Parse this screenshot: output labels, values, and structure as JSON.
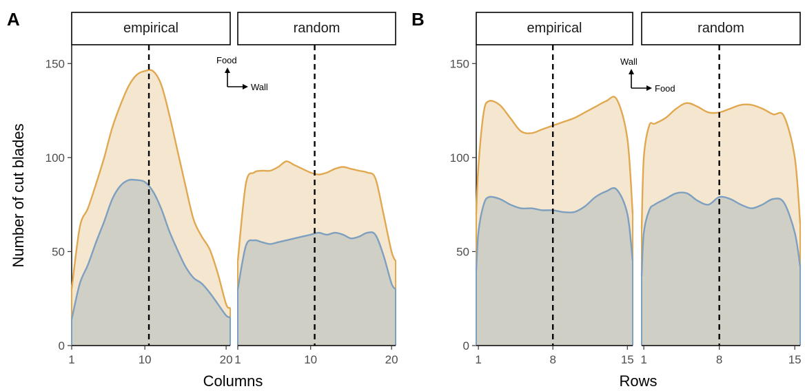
{
  "colors": {
    "fill_total": "#f5e6cf",
    "line_total": "#e0a850",
    "fill_sub": "#cfcfc6",
    "line_sub": "#7d9fc0",
    "ref_line": "#000000"
  },
  "chart_data": [
    {
      "panel_label": "A",
      "type": "area",
      "ylabel": "Number of cut blades",
      "xlabel": "Columns",
      "ylim": [
        0,
        160
      ],
      "y_ticks": [
        0,
        50,
        100,
        150
      ],
      "grid": false,
      "facets": [
        {
          "label": "empirical",
          "xlim": [
            1,
            20.5
          ],
          "x_ticks": [
            1,
            10,
            20
          ],
          "ref_line_x": 10.5,
          "series": [
            {
              "name": "",
              "role": "total",
              "x": [
                1,
                2,
                3,
                4,
                5,
                6,
                7,
                8,
                9,
                10,
                11,
                12,
                13,
                14,
                15,
                16,
                17,
                18,
                19,
                20,
                20.5
              ],
              "y": [
                30,
                63,
                73,
                86,
                100,
                116,
                128,
                138,
                144,
                146,
                146,
                139,
                123,
                104,
                85,
                67,
                58,
                51,
                38,
                22,
                20
              ]
            },
            {
              "name": "",
              "role": "subset",
              "x": [
                1,
                2,
                3,
                4,
                5,
                6,
                7,
                8,
                9,
                10,
                11,
                12,
                13,
                14,
                15,
                16,
                17,
                18,
                19,
                20,
                20.5
              ],
              "y": [
                14,
                33,
                43,
                55,
                66,
                78,
                85,
                88,
                88,
                87,
                82,
                73,
                61,
                51,
                42,
                36,
                33,
                28,
                22,
                16,
                15
              ]
            }
          ]
        },
        {
          "label": "random",
          "xlim": [
            1,
            20.5
          ],
          "x_ticks": [
            1,
            10,
            20
          ],
          "ref_line_x": 10.5,
          "series": [
            {
              "name": "",
              "role": "total",
              "x": [
                1,
                2,
                3,
                4,
                5,
                6,
                7,
                8,
                9,
                10,
                11,
                12,
                13,
                14,
                15,
                16,
                17,
                18,
                19,
                20,
                20.5
              ],
              "y": [
                45,
                86,
                92,
                93,
                93,
                95,
                98,
                96,
                94,
                92,
                91,
                92,
                94,
                95,
                94,
                93,
                92,
                89,
                70,
                50,
                45
              ]
            },
            {
              "name": "",
              "role": "subset",
              "x": [
                1,
                2,
                3,
                4,
                5,
                6,
                7,
                8,
                9,
                10,
                11,
                12,
                13,
                14,
                15,
                16,
                17,
                18,
                19,
                20,
                20.5
              ],
              "y": [
                30,
                53,
                56,
                55,
                54,
                55,
                56,
                57,
                58,
                59,
                60,
                59,
                60,
                59,
                57,
                58,
                60,
                59,
                48,
                33,
                30
              ]
            }
          ]
        }
      ],
      "compass": {
        "up_label": "Food",
        "right_label": "Wall"
      }
    },
    {
      "panel_label": "B",
      "type": "area",
      "ylabel": "",
      "xlabel": "Rows",
      "ylim": [
        0,
        160
      ],
      "y_ticks": [
        0,
        50,
        100,
        150
      ],
      "grid": false,
      "facets": [
        {
          "label": "empirical",
          "xlim": [
            0.8,
            15.5
          ],
          "x_ticks": [
            1,
            8,
            15
          ],
          "ref_line_x": 8,
          "series": [
            {
              "name": "",
              "role": "total",
              "x": [
                0.8,
                1,
                1.5,
                2,
                3,
                4,
                5,
                6,
                7,
                8,
                9,
                10,
                11,
                12,
                13,
                14,
                15,
                15.5
              ],
              "y": [
                70,
                95,
                124,
                130,
                128,
                121,
                114,
                113,
                115,
                117,
                119,
                121,
                124,
                127,
                130,
                131,
                110,
                70
              ]
            },
            {
              "name": "",
              "role": "subset",
              "x": [
                0.8,
                1,
                1.5,
                2,
                3,
                4,
                5,
                6,
                7,
                8,
                9,
                10,
                11,
                12,
                13,
                14,
                15,
                15.5
              ],
              "y": [
                40,
                60,
                75,
                79,
                78,
                75,
                73,
                73,
                72,
                72,
                71,
                71,
                74,
                79,
                82,
                83,
                70,
                45
              ]
            }
          ]
        },
        {
          "label": "random",
          "xlim": [
            0.8,
            15.5
          ],
          "x_ticks": [
            1,
            8,
            15
          ],
          "ref_line_x": 8,
          "series": [
            {
              "name": "",
              "role": "total",
              "x": [
                0.8,
                1,
                1.5,
                2,
                3,
                4,
                5,
                6,
                7,
                8,
                9,
                10,
                11,
                12,
                13,
                14,
                15,
                15.5
              ],
              "y": [
                62,
                100,
                117,
                118,
                121,
                126,
                129,
                127,
                124,
                124,
                126,
                128,
                128,
                126,
                123,
                122,
                100,
                65
              ]
            },
            {
              "name": "",
              "role": "subset",
              "x": [
                0.8,
                1,
                1.5,
                2,
                3,
                4,
                5,
                6,
                7,
                8,
                9,
                10,
                11,
                12,
                13,
                14,
                15,
                15.5
              ],
              "y": [
                37,
                60,
                72,
                75,
                78,
                81,
                81,
                77,
                75,
                79,
                78,
                75,
                73,
                75,
                78,
                76,
                60,
                42
              ]
            }
          ]
        }
      ],
      "compass": {
        "up_label": "Wall",
        "right_label": "Food"
      }
    }
  ]
}
